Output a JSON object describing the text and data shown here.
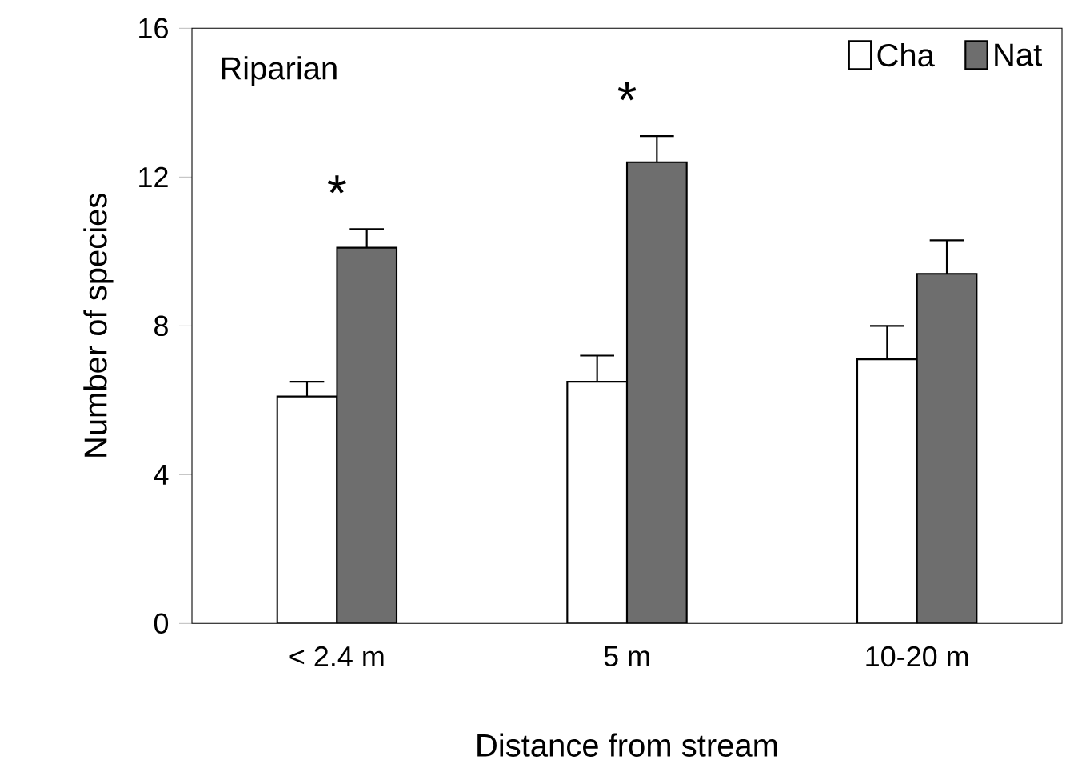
{
  "chart_data": {
    "type": "bar",
    "title": "Riparian",
    "xlabel": "Distance from stream",
    "ylabel": "Number of species",
    "categories": [
      "< 2.4 m",
      "5 m",
      "10-20 m"
    ],
    "series": [
      {
        "name": "Cha",
        "color": "#ffffff",
        "values": [
          6.1,
          6.5,
          7.1
        ],
        "errors": [
          0.4,
          0.7,
          0.9
        ]
      },
      {
        "name": "Nat",
        "color": "#6e6e6e",
        "values": [
          10.1,
          12.4,
          9.4
        ],
        "errors": [
          0.5,
          0.7,
          0.9
        ]
      }
    ],
    "ylim": [
      0,
      16
    ],
    "yticks": [
      0,
      4,
      8,
      12,
      16
    ],
    "grid": false,
    "legend": "top right",
    "annotations": [
      "*",
      "*"
    ]
  }
}
